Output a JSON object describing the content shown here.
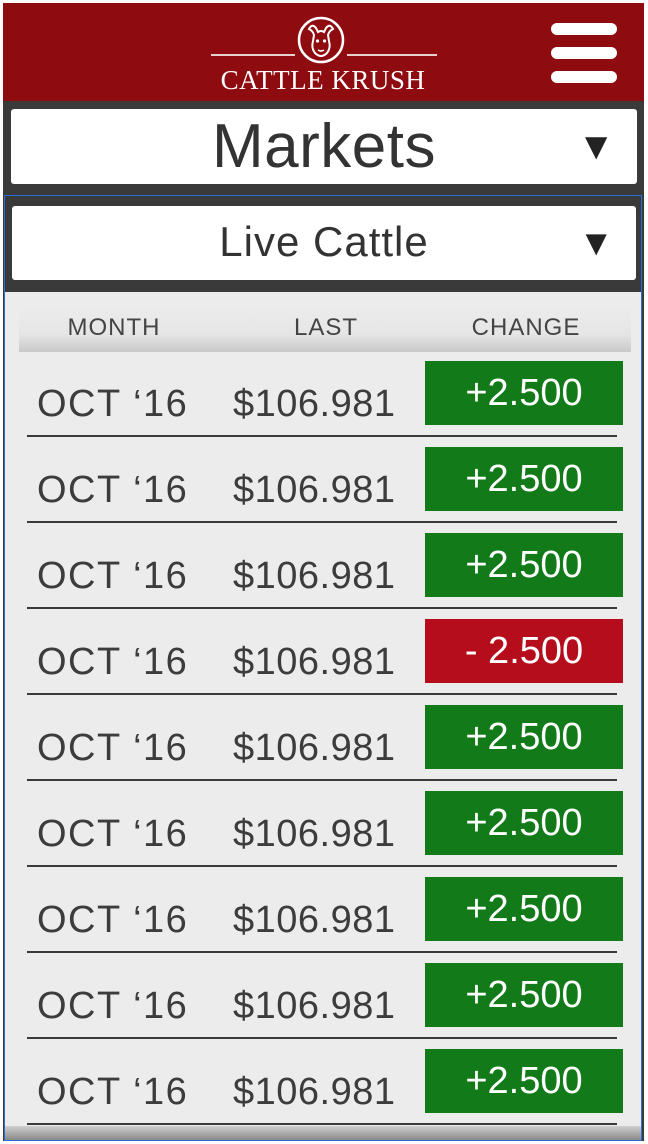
{
  "header": {
    "brand": "CATTLE KRUSH",
    "logo_icon": "bull-head-icon",
    "menu_icon": "hamburger-menu-icon"
  },
  "section_select": {
    "value": "Markets",
    "arrow": "▼"
  },
  "commodity_select": {
    "value": "Live Cattle",
    "arrow": "▼"
  },
  "table": {
    "headers": {
      "month": "MONTH",
      "last": "LAST",
      "change": "CHANGE"
    },
    "rows": [
      {
        "month": "OCT ‘16",
        "last": "$106.981",
        "change": "+2.500",
        "direction": "up"
      },
      {
        "month": "OCT ‘16",
        "last": "$106.981",
        "change": "+2.500",
        "direction": "up"
      },
      {
        "month": "OCT ‘16",
        "last": "$106.981",
        "change": "+2.500",
        "direction": "up"
      },
      {
        "month": "OCT ‘16",
        "last": "$106.981",
        "change": "- 2.500",
        "direction": "down"
      },
      {
        "month": "OCT ‘16",
        "last": "$106.981",
        "change": "+2.500",
        "direction": "up"
      },
      {
        "month": "OCT ‘16",
        "last": "$106.981",
        "change": "+2.500",
        "direction": "up"
      },
      {
        "month": "OCT ‘16",
        "last": "$106.981",
        "change": "+2.500",
        "direction": "up"
      },
      {
        "month": "OCT ‘16",
        "last": "$106.981",
        "change": "+2.500",
        "direction": "up"
      },
      {
        "month": "OCT ‘16",
        "last": "$106.981",
        "change": "+2.500",
        "direction": "up"
      }
    ]
  },
  "colors": {
    "header_bg": "#8e0c10",
    "up": "#127a18",
    "down": "#b60d1c",
    "dark_bar": "#3a3a3a",
    "panel_bg": "#ececec"
  }
}
